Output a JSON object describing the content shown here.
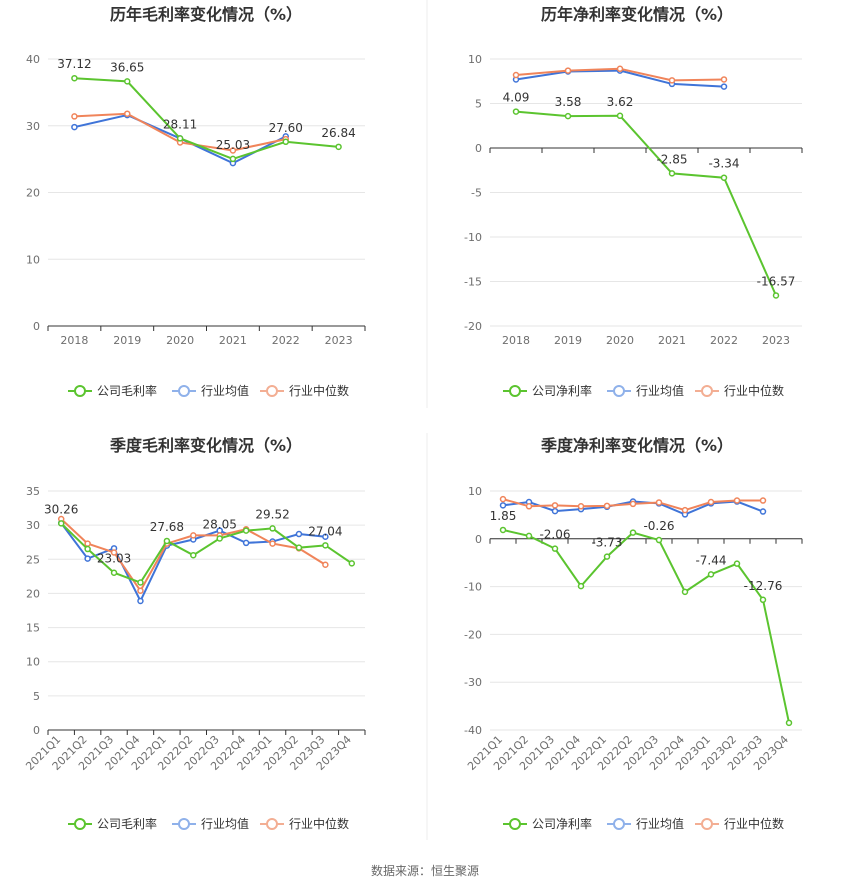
{
  "footer": "数据来源：恒生聚源",
  "colors": {
    "company": "#5bc42f",
    "industry_avg": "#3f74d8",
    "industry_median": "#f0845a"
  },
  "chart_data": [
    {
      "id": "annual-gross",
      "type": "line",
      "title": "历年毛利率变化情况（%）",
      "categories": [
        "2018",
        "2019",
        "2020",
        "2021",
        "2022",
        "2023"
      ],
      "ylim": [
        0,
        40
      ],
      "yticks": [
        0,
        10,
        20,
        30,
        40
      ],
      "series": [
        {
          "name": "公司毛利率",
          "values": [
            37.12,
            36.65,
            28.11,
            25.03,
            27.6,
            26.84
          ],
          "labels": [
            "37.12",
            "36.65",
            "28.11",
            "25.03",
            "27.60",
            "26.84"
          ]
        },
        {
          "name": "行业均值",
          "values": [
            29.8,
            31.6,
            28.1,
            24.4,
            28.4,
            null
          ]
        },
        {
          "name": "行业中位数",
          "values": [
            31.4,
            31.8,
            27.5,
            26.3,
            28.0,
            null
          ]
        }
      ],
      "legend_position": "bottom"
    },
    {
      "id": "annual-net",
      "type": "line",
      "title": "历年净利率变化情况（%）",
      "categories": [
        "2018",
        "2019",
        "2020",
        "2021",
        "2022",
        "2023"
      ],
      "ylim": [
        -20,
        10
      ],
      "yticks": [
        -20,
        -15,
        -10,
        -5,
        0,
        5,
        10
      ],
      "series": [
        {
          "name": "公司净利率",
          "values": [
            4.09,
            3.58,
            3.62,
            -2.85,
            -3.34,
            -16.57
          ],
          "labels": [
            "4.09",
            "3.58",
            "3.62",
            "-2.85",
            "-3.34",
            "-16.57"
          ]
        },
        {
          "name": "行业均值",
          "values": [
            7.7,
            8.6,
            8.7,
            7.2,
            6.9,
            null
          ]
        },
        {
          "name": "行业中位数",
          "values": [
            8.2,
            8.7,
            8.9,
            7.6,
            7.7,
            null
          ]
        }
      ],
      "legend_position": "bottom"
    },
    {
      "id": "quarterly-gross",
      "type": "line",
      "title": "季度毛利率变化情况（%）",
      "categories": [
        "2021Q1",
        "2021Q2",
        "2021Q3",
        "2021Q4",
        "2022Q1",
        "2022Q2",
        "2022Q3",
        "2022Q4",
        "2023Q1",
        "2023Q2",
        "2023Q3",
        "2023Q4"
      ],
      "ylim": [
        0,
        35
      ],
      "yticks": [
        0,
        5,
        10,
        15,
        20,
        25,
        30,
        35
      ],
      "series": [
        {
          "name": "公司毛利率",
          "values": [
            30.26,
            26.5,
            23.03,
            21.6,
            27.68,
            25.6,
            28.05,
            29.2,
            29.52,
            26.7,
            27.04,
            24.4
          ],
          "labels": [
            "30.26",
            null,
            "23.03",
            null,
            "27.68",
            null,
            "28.05",
            null,
            "29.52",
            null,
            "27.04",
            null
          ]
        },
        {
          "name": "行业均值",
          "values": [
            30.3,
            25.1,
            26.6,
            18.9,
            27.0,
            27.9,
            29.2,
            27.4,
            27.6,
            28.7,
            28.3,
            null
          ]
        },
        {
          "name": "行业中位数",
          "values": [
            30.9,
            27.3,
            26.0,
            20.4,
            27.3,
            28.5,
            28.5,
            29.4,
            27.3,
            26.6,
            24.2,
            null
          ]
        }
      ],
      "legend_position": "bottom"
    },
    {
      "id": "quarterly-net",
      "type": "line",
      "title": "季度净利率变化情况（%）",
      "categories": [
        "2021Q1",
        "2021Q2",
        "2021Q3",
        "2021Q4",
        "2022Q1",
        "2022Q2",
        "2022Q3",
        "2022Q4",
        "2023Q1",
        "2023Q2",
        "2023Q3",
        "2023Q4"
      ],
      "ylim": [
        -40,
        10
      ],
      "yticks": [
        -40,
        -30,
        -20,
        -10,
        0,
        10
      ],
      "series": [
        {
          "name": "公司净利率",
          "values": [
            1.85,
            0.6,
            -2.06,
            -9.9,
            -3.73,
            1.3,
            -0.26,
            -11.1,
            -7.44,
            -5.2,
            -12.76,
            -38.5
          ],
          "labels": [
            "1.85",
            null,
            "-2.06",
            null,
            "-3.73",
            null,
            "-0.26",
            null,
            "-7.44",
            null,
            "-12.76",
            null
          ]
        },
        {
          "name": "行业均值",
          "values": [
            7.0,
            7.7,
            5.8,
            6.2,
            6.7,
            7.8,
            7.4,
            5.1,
            7.4,
            7.8,
            5.7,
            null
          ]
        },
        {
          "name": "行业中位数",
          "values": [
            8.3,
            6.8,
            7.0,
            6.8,
            6.9,
            7.3,
            7.6,
            6.0,
            7.7,
            8.0,
            8.0,
            null
          ]
        }
      ],
      "legend_position": "bottom"
    }
  ]
}
